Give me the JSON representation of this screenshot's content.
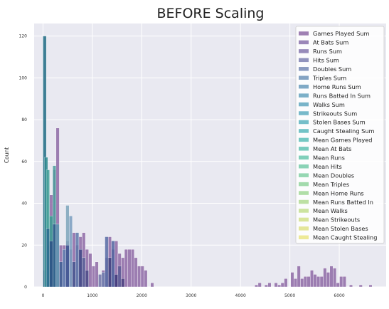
{
  "chart_data": {
    "type": "bar",
    "subtype": "overlaid-histogram",
    "title": "BEFORE Scaling",
    "xlabel": "",
    "ylabel": "Count",
    "xlim": [
      -180,
      6950
    ],
    "ylim": [
      0,
      126
    ],
    "xticks": [
      0,
      1000,
      2000,
      3000,
      4000,
      5000,
      6000
    ],
    "yticks": [
      0,
      20,
      40,
      60,
      80,
      100,
      120
    ],
    "grid": true,
    "background": "#e9e9f1",
    "legend_position": "upper-right",
    "bin_width": 66,
    "series": [
      {
        "name": "Games Played Sum",
        "color": "#8e6aa6",
        "bins": [
          [
            0,
            8
          ],
          [
            66,
            20
          ],
          [
            132,
            44
          ],
          [
            198,
            56
          ],
          [
            264,
            76
          ],
          [
            330,
            20
          ],
          [
            396,
            20
          ],
          [
            462,
            22
          ],
          [
            528,
            18
          ],
          [
            594,
            26
          ],
          [
            660,
            20
          ],
          [
            726,
            24
          ],
          [
            792,
            26
          ],
          [
            858,
            18
          ],
          [
            924,
            16
          ],
          [
            990,
            10
          ],
          [
            1056,
            12
          ],
          [
            1122,
            6
          ],
          [
            1188,
            8
          ],
          [
            1254,
            14
          ],
          [
            1320,
            24
          ],
          [
            1386,
            18
          ],
          [
            1452,
            22
          ],
          [
            1518,
            16
          ],
          [
            1584,
            14
          ],
          [
            1650,
            18
          ],
          [
            1716,
            18
          ],
          [
            1782,
            18
          ],
          [
            1848,
            14
          ],
          [
            1914,
            10
          ],
          [
            1980,
            10
          ],
          [
            2046,
            8
          ],
          [
            2178,
            2
          ],
          [
            4290,
            1
          ],
          [
            4356,
            2
          ],
          [
            4488,
            1
          ],
          [
            4554,
            2
          ],
          [
            4686,
            2
          ],
          [
            4752,
            1
          ],
          [
            4818,
            2
          ],
          [
            4884,
            4
          ],
          [
            5016,
            7
          ],
          [
            5082,
            4
          ],
          [
            5148,
            10
          ],
          [
            5214,
            4
          ],
          [
            5280,
            5
          ],
          [
            5346,
            5
          ],
          [
            5412,
            8
          ],
          [
            5478,
            6
          ],
          [
            5544,
            5
          ],
          [
            5610,
            5
          ],
          [
            5676,
            9
          ],
          [
            5742,
            7
          ],
          [
            5808,
            10
          ],
          [
            5874,
            9
          ],
          [
            5940,
            2
          ],
          [
            6006,
            5
          ],
          [
            6072,
            5
          ],
          [
            6204,
            1
          ],
          [
            6402,
            1
          ],
          [
            6600,
            1
          ]
        ]
      },
      {
        "name": "At Bats Sum",
        "color": "#8a72ab",
        "bins": []
      },
      {
        "name": "Runs Sum",
        "color": "#8577ae",
        "bins": []
      },
      {
        "name": "Hits Sum",
        "color": "#7e80b2",
        "bins": []
      },
      {
        "name": "Doubles Sum",
        "color": "#7789b5",
        "bins": []
      },
      {
        "name": "Triples Sum",
        "color": "#6f93b9",
        "bins": []
      },
      {
        "name": "Home Runs Sum",
        "color": "#6a9bbc",
        "bins": []
      },
      {
        "name": "Runs Batted In Sum",
        "color": "#65a2be",
        "bins": []
      },
      {
        "name": "Walks Sum",
        "color": "#62a7bf",
        "bins": []
      },
      {
        "name": "Strikeouts Sum",
        "color": "#5fadc1",
        "bins": []
      },
      {
        "name": "Stolen Bases Sum",
        "color": "#5db3c0",
        "bins": []
      },
      {
        "name": "Caught Stealing Sum",
        "color": "#5ab9bd",
        "bins": []
      },
      {
        "name": "Mean Games Played",
        "color": "#5dbeb8",
        "bins": []
      },
      {
        "name": "Mean At Bats",
        "color": "#62c2b3",
        "bins": []
      },
      {
        "name": "Mean Runs",
        "color": "#6ac7ae",
        "bins": []
      },
      {
        "name": "Mean Hits",
        "color": "#75cba9",
        "bins": []
      },
      {
        "name": "Mean Doubles",
        "color": "#82d0a4",
        "bins": []
      },
      {
        "name": "Mean Triples",
        "color": "#92d49e",
        "bins": []
      },
      {
        "name": "Mean Home Runs",
        "color": "#a2d898",
        "bins": []
      },
      {
        "name": "Mean Runs Batted In",
        "color": "#b2db93",
        "bins": []
      },
      {
        "name": "Mean Walks",
        "color": "#c3de8e",
        "bins": []
      },
      {
        "name": "Mean Strikeouts",
        "color": "#d2e18a",
        "bins": []
      },
      {
        "name": "Mean Stolen Bases",
        "color": "#dfe287",
        "bins": []
      },
      {
        "name": "Mean Caught Stealing",
        "color": "#eae585",
        "bins": []
      }
    ],
    "overlay_bins": [
      {
        "x": 0,
        "value": 120,
        "color": "#1e6b84"
      },
      {
        "x": 30,
        "value": 62,
        "color": "#2d8a8e"
      },
      {
        "x": 66,
        "value": 56,
        "color": "#3f9e96"
      },
      {
        "x": 66,
        "value": 28,
        "color": "#2b6b8f"
      },
      {
        "x": 132,
        "value": 34,
        "color": "#3a9b93"
      },
      {
        "x": 132,
        "value": 22,
        "color": "#2c4e85"
      },
      {
        "x": 198,
        "value": 58,
        "color": "#4a9c9b"
      },
      {
        "x": 198,
        "value": 30,
        "color": "#2d5b8b"
      },
      {
        "x": 264,
        "value": 30,
        "color": "#5c95b0"
      },
      {
        "x": 330,
        "value": 12,
        "color": "#3d5f94"
      },
      {
        "x": 396,
        "value": 18,
        "color": "#5f7fb0"
      },
      {
        "x": 462,
        "value": 39,
        "color": "#7ca4bb"
      },
      {
        "x": 462,
        "value": 20,
        "color": "#3e4f8f"
      },
      {
        "x": 528,
        "value": 34,
        "color": "#7a9ec0"
      },
      {
        "x": 594,
        "value": 12,
        "color": "#45558f"
      },
      {
        "x": 660,
        "value": 26,
        "color": "#5e78aa"
      },
      {
        "x": 726,
        "value": 18,
        "color": "#3e4786"
      },
      {
        "x": 792,
        "value": 14,
        "color": "#585f98"
      },
      {
        "x": 858,
        "value": 8,
        "color": "#4b4a88"
      },
      {
        "x": 1122,
        "value": 6,
        "color": "#7c86b3"
      },
      {
        "x": 1188,
        "value": 7,
        "color": "#6e7cae"
      },
      {
        "x": 1254,
        "value": 24,
        "color": "#566aa3"
      },
      {
        "x": 1320,
        "value": 14,
        "color": "#3e3e7e"
      },
      {
        "x": 1386,
        "value": 22,
        "color": "#5165a0"
      },
      {
        "x": 1452,
        "value": 6,
        "color": "#3b3478"
      },
      {
        "x": 1518,
        "value": 10,
        "color": "#5b5a95"
      },
      {
        "x": 1584,
        "value": 4,
        "color": "#4a3f80"
      }
    ]
  }
}
